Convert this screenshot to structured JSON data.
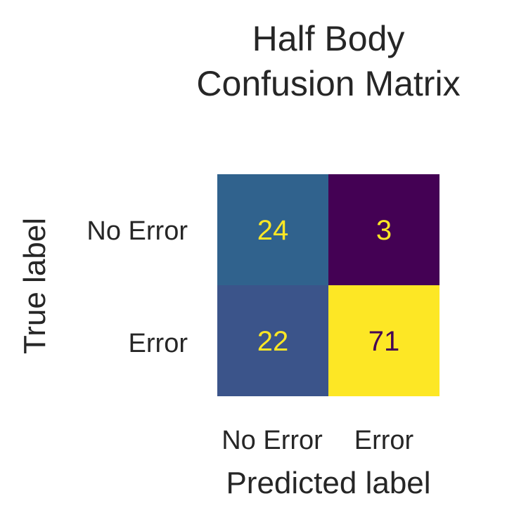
{
  "chart_data": {
    "type": "heatmap",
    "title_lines": [
      "Half Body",
      "Confusion Matrix"
    ],
    "xlabel": "Predicted label",
    "ylabel": "True label",
    "x_categories": [
      "No Error",
      "Error"
    ],
    "y_categories": [
      "No Error",
      "Error"
    ],
    "values": [
      [
        24,
        3
      ],
      [
        22,
        71
      ]
    ],
    "colormap": "viridis",
    "cell_colors": [
      [
        "#30628d",
        "#440154"
      ],
      [
        "#3b548a",
        "#fde725"
      ]
    ],
    "text_colors": [
      [
        "#fde725",
        "#fde725"
      ],
      [
        "#fde725",
        "#440154"
      ]
    ],
    "grid": false,
    "colorbar": false
  }
}
